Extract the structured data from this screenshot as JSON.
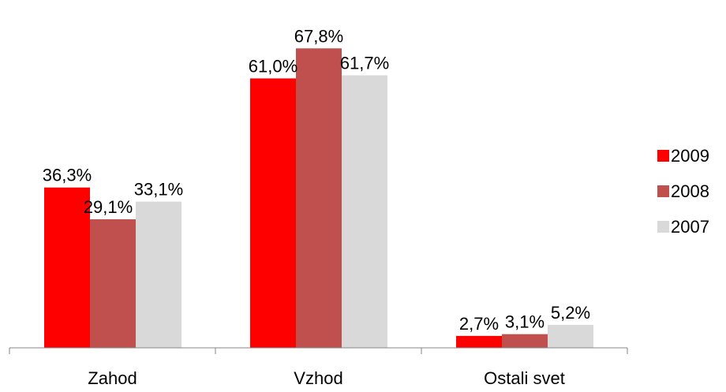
{
  "chart_data": {
    "type": "bar",
    "categories": [
      "Zahod",
      "Vzhod",
      "Ostali svet"
    ],
    "series": [
      {
        "name": "2009",
        "values": [
          36.3,
          61.0,
          2.7
        ],
        "labels": [
          "36,3%",
          "61,0%",
          "2,7%"
        ],
        "color": "#ff0000"
      },
      {
        "name": "2008",
        "values": [
          29.1,
          67.8,
          3.1
        ],
        "labels": [
          "29,1%",
          "67,8%",
          "3,1%"
        ],
        "color": "#c0504d"
      },
      {
        "name": "2007",
        "values": [
          33.1,
          61.7,
          5.2
        ],
        "labels": [
          "33,1%",
          "61,7%",
          "5,2%"
        ],
        "color": "#d9d9d9"
      }
    ],
    "title": "",
    "xlabel": "",
    "ylabel": "",
    "ylim": [
      0,
      70
    ],
    "grid": false,
    "legend": "right"
  }
}
